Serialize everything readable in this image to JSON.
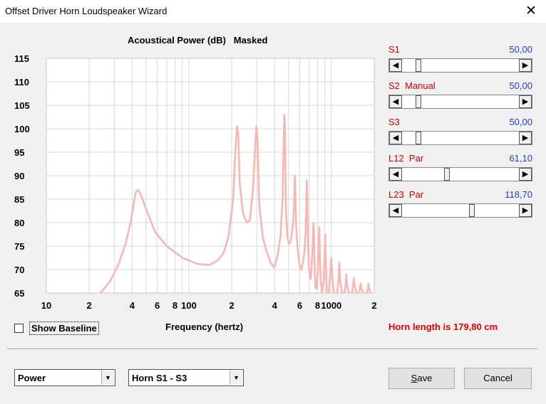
{
  "window": {
    "title": "Offset Driver Horn Loudspeaker Wizard",
    "close_glyph": "✕"
  },
  "chart_header": {
    "text": "Acoustical Power (dB)   Masked"
  },
  "sliders": [
    {
      "label": "S1",
      "value": "50,00",
      "position": 0.12
    },
    {
      "label": "S2  Manual",
      "value": "50,00",
      "position": 0.12
    },
    {
      "label": "S3",
      "value": "50,00",
      "position": 0.12
    },
    {
      "label": "L12  Par",
      "value": "61,10",
      "position": 0.38
    },
    {
      "label": "L23  Par",
      "value": "118,70",
      "position": 0.6
    }
  ],
  "show_baseline": {
    "label": "Show Baseline",
    "checked": false
  },
  "horn_length": "Horn length is 179,80 cm",
  "selects": {
    "mode": "Power",
    "horn": "Horn S1 - S3"
  },
  "buttons": {
    "save_underlined": "S",
    "save_rest": "ave",
    "cancel": "Cancel"
  },
  "colors": {
    "curve": "#f7b7b7",
    "accent_label": "#d00000",
    "value_text": "#1f3fd0",
    "grid": "#d8d8d8"
  },
  "chart_data": {
    "type": "line",
    "title": "Acoustical Power (dB)   Masked",
    "xlabel": "Frequency (hertz)",
    "ylabel": "",
    "xscale": "log",
    "xlim": [
      10,
      2000
    ],
    "ylim": [
      65,
      115
    ],
    "y_ticks": [
      "115",
      "110",
      "105",
      "100",
      "95",
      "90",
      "85",
      "80",
      "75",
      "70",
      "65"
    ],
    "x_ticks": [
      "10",
      "2",
      "4",
      "6",
      "8",
      "100",
      "2",
      "4",
      "6",
      "8",
      "1000",
      "2"
    ],
    "x_tick_values": [
      10,
      20,
      40,
      60,
      80,
      100,
      200,
      400,
      600,
      800,
      1000,
      2000
    ],
    "grid": true,
    "series": [
      {
        "name": "",
        "points": [
          [
            24,
            65
          ],
          [
            28,
            67.5
          ],
          [
            32,
            71
          ],
          [
            36,
            75.5
          ],
          [
            39,
            80
          ],
          [
            41,
            84
          ],
          [
            42.5,
            86.5
          ],
          [
            44,
            87
          ],
          [
            46,
            86
          ],
          [
            50,
            83
          ],
          [
            58,
            78
          ],
          [
            70,
            75
          ],
          [
            90,
            72.5
          ],
          [
            115,
            71.2
          ],
          [
            140,
            71
          ],
          [
            150,
            71.5
          ],
          [
            160,
            72
          ],
          [
            175,
            73.5
          ],
          [
            190,
            77
          ],
          [
            205,
            85
          ],
          [
            212,
            95
          ],
          [
            218,
            100.5
          ],
          [
            222,
            99
          ],
          [
            228,
            88
          ],
          [
            240,
            82
          ],
          [
            255,
            80
          ],
          [
            268,
            80.5
          ],
          [
            282,
            87
          ],
          [
            292,
            96
          ],
          [
            298,
            100.5
          ],
          [
            303,
            98
          ],
          [
            312,
            84
          ],
          [
            330,
            77
          ],
          [
            350,
            74
          ],
          [
            375,
            71.5
          ],
          [
            395,
            70.5
          ],
          [
            405,
            71
          ],
          [
            420,
            73
          ],
          [
            440,
            77
          ],
          [
            455,
            85
          ],
          [
            463,
            97
          ],
          [
            468,
            103
          ],
          [
            473,
            100
          ],
          [
            480,
            83
          ],
          [
            492,
            77
          ],
          [
            505,
            75.5
          ],
          [
            518,
            76
          ],
          [
            530,
            78
          ],
          [
            540,
            80
          ],
          [
            548,
            84
          ],
          [
            554,
            90
          ],
          [
            559,
            87
          ],
          [
            565,
            80
          ],
          [
            578,
            75
          ],
          [
            592,
            72
          ],
          [
            603,
            70.5
          ],
          [
            612,
            70
          ],
          [
            620,
            70.2
          ],
          [
            632,
            71.5
          ],
          [
            648,
            74
          ],
          [
            660,
            78
          ],
          [
            668,
            83
          ],
          [
            673,
            89
          ],
          [
            678,
            86
          ],
          [
            685,
            76
          ],
          [
            695,
            71
          ],
          [
            705,
            69
          ],
          [
            715,
            68
          ],
          [
            725,
            70
          ],
          [
            740,
            75
          ],
          [
            750,
            80
          ],
          [
            756,
            78
          ],
          [
            764,
            70
          ],
          [
            775,
            66
          ],
          [
            790,
            66
          ],
          [
            805,
            70
          ],
          [
            815,
            75.5
          ],
          [
            822,
            79
          ],
          [
            828,
            76
          ],
          [
            840,
            68
          ],
          [
            860,
            65
          ],
          [
            885,
            68
          ],
          [
            900,
            75
          ],
          [
            908,
            77.5
          ],
          [
            915,
            72
          ],
          [
            930,
            65
          ],
          [
            960,
            65
          ],
          [
            985,
            70
          ],
          [
            1000,
            72.5
          ],
          [
            1010,
            70
          ],
          [
            1040,
            65
          ],
          [
            1100,
            65
          ],
          [
            1125,
            68
          ],
          [
            1140,
            71.5
          ],
          [
            1150,
            68
          ],
          [
            1190,
            65
          ],
          [
            1240,
            65
          ],
          [
            1260,
            67
          ],
          [
            1275,
            69
          ],
          [
            1285,
            67
          ],
          [
            1330,
            65
          ],
          [
            1400,
            65
          ],
          [
            1425,
            67
          ],
          [
            1440,
            68.2
          ],
          [
            1450,
            67
          ],
          [
            1500,
            65
          ],
          [
            1570,
            65
          ],
          [
            1595,
            66.5
          ],
          [
            1610,
            67
          ],
          [
            1620,
            66
          ],
          [
            1680,
            65
          ],
          [
            1780,
            65
          ],
          [
            1810,
            66
          ],
          [
            1825,
            67
          ],
          [
            1835,
            66
          ],
          [
            1900,
            65
          ]
        ]
      }
    ]
  }
}
